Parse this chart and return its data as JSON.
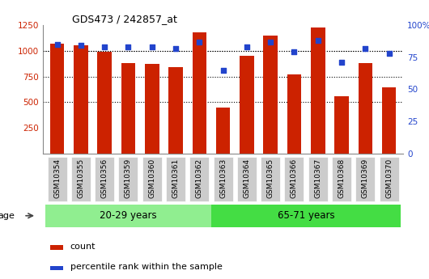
{
  "title": "GDS473 / 242857_at",
  "samples": [
    "GSM10354",
    "GSM10355",
    "GSM10356",
    "GSM10359",
    "GSM10360",
    "GSM10361",
    "GSM10362",
    "GSM10363",
    "GSM10364",
    "GSM10365",
    "GSM10366",
    "GSM10367",
    "GSM10368",
    "GSM10369",
    "GSM10370"
  ],
  "counts": [
    1070,
    1050,
    990,
    880,
    870,
    840,
    1180,
    450,
    950,
    1150,
    770,
    1230,
    560,
    880,
    645
  ],
  "percentile": [
    85,
    84,
    83,
    83,
    83,
    82,
    87,
    65,
    83,
    87,
    79,
    88,
    71,
    82,
    78
  ],
  "groups": [
    {
      "label": "20-29 years",
      "start": 0,
      "end": 6,
      "color": "#90ee90"
    },
    {
      "label": "65-71 years",
      "start": 7,
      "end": 14,
      "color": "#44dd44"
    }
  ],
  "bar_color": "#cc2200",
  "dot_color": "#2244cc",
  "ylim_left": [
    0,
    1250
  ],
  "ylim_right": [
    0,
    100
  ],
  "yticks_left": [
    250,
    500,
    750,
    1000,
    1250
  ],
  "yticks_right": [
    0,
    25,
    50,
    75,
    100
  ],
  "grid_values": [
    500,
    750,
    1000
  ],
  "bg_color": "#ffffff",
  "tick_bg": "#cccccc",
  "age_label": "age",
  "legend_count": "count",
  "legend_pct": "percentile rank within the sample"
}
